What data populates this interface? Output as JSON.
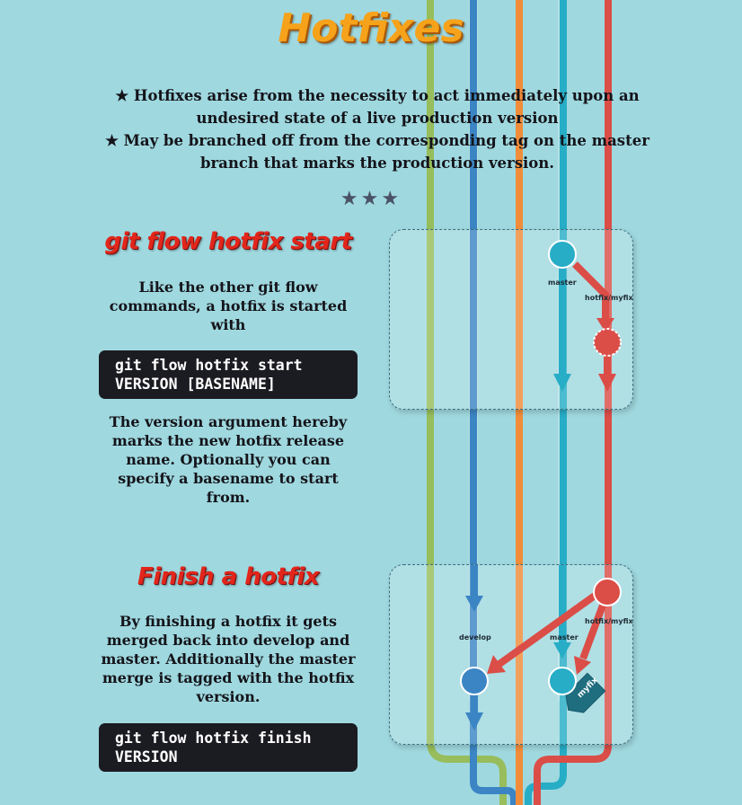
{
  "title": "Hotfixes",
  "intro": {
    "line1": "★ Hotfixes arise from the necessity to act immediately upon an undesired state of a live production version",
    "line2": "★ May be branched off from the corresponding tag on the master branch that marks the production version."
  },
  "separator": "★★★",
  "start_section": {
    "heading": "git flow hotfix start",
    "intro_text": "Like the other git flow commands, a hotfix is started with",
    "command": "git flow hotfix start VERSION [BASENAME]",
    "explanation": "The version argument hereby marks the new hotfix release name. Optionally you can specify a basename to start from.",
    "diagram": {
      "master_label": "master",
      "hotfix_label": "hotfix/myfix"
    }
  },
  "finish_section": {
    "heading": "Finish a hotfix",
    "explanation": "By finishing a hotfix it gets merged back into develop and master. Additionally the master merge is tagged with the hotfix version.",
    "command": "git flow hotfix finish VERSION",
    "diagram": {
      "develop_label": "develop",
      "master_label": "master",
      "hotfix_label": "hotfix/myfix",
      "tag_label": "myfix"
    }
  },
  "colors": {
    "background": "#9fd8df",
    "lane_green": "#97bd5c",
    "lane_blue": "#3b85c4",
    "lane_orange": "#f08c3a",
    "lane_cyan": "#27adc6",
    "lane_red": "#db4d47",
    "title": "#f6a21a",
    "heading": "#e2261b",
    "code_bg": "#1b1b22"
  }
}
